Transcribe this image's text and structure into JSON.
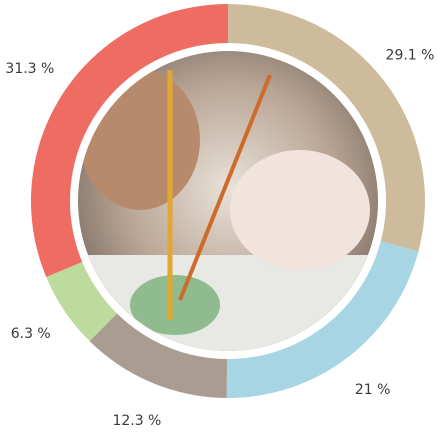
{
  "chart_data": {
    "type": "donut",
    "categories": [
      null,
      null,
      null,
      null,
      null
    ],
    "values": [
      29.1,
      21,
      12.3,
      6.3,
      31.3
    ],
    "value_labels": [
      "29.1 %",
      "21 %",
      "12.3 %",
      "6.3 %",
      "31.3 %"
    ],
    "colors": [
      "#cdbb9c",
      "#a8d5e4",
      "#a99d92",
      "#bedb9e",
      "#ee6c62"
    ]
  }
}
